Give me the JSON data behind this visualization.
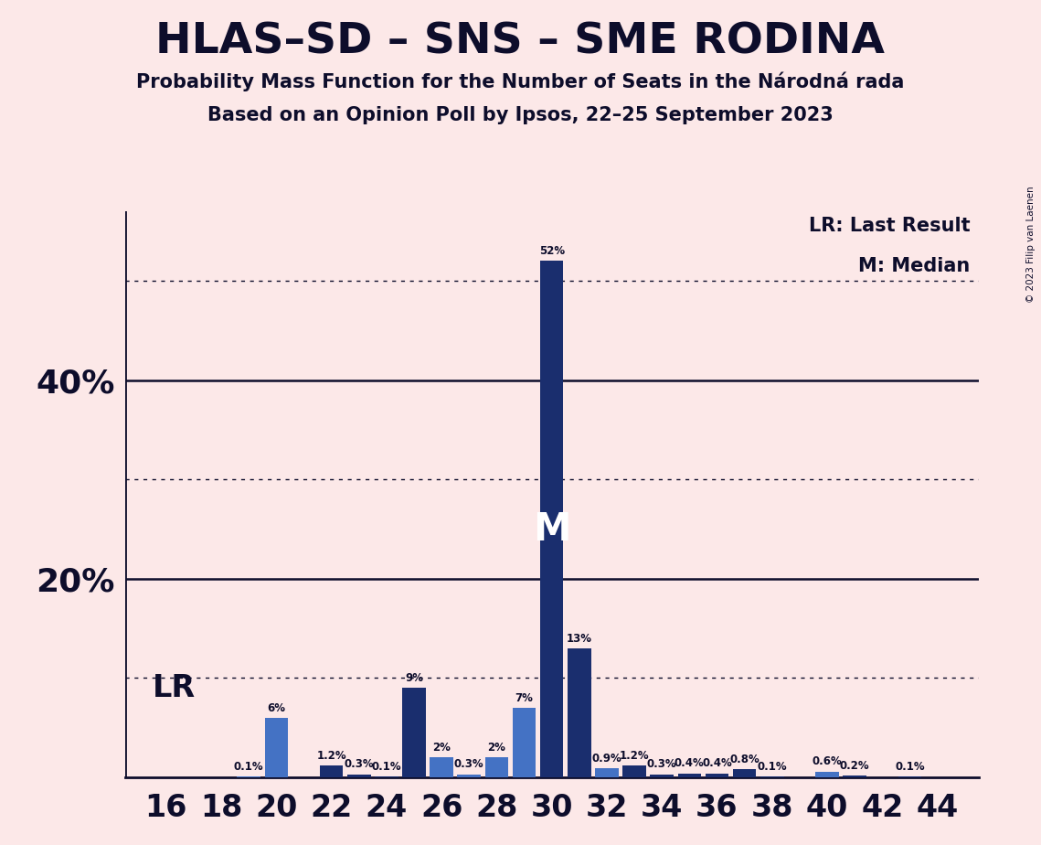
{
  "title": "HLAS–SD – SNS – SME RODINA",
  "subtitle1": "Probability Mass Function for the Number of Seats in the Národná rada",
  "subtitle2": "Based on an Opinion Poll by Ipsos, 22–25 September 2023",
  "copyright": "© 2023 Filip van Laenen",
  "lr_seat": 20,
  "median_seat": 30,
  "seats": [
    16,
    17,
    18,
    19,
    20,
    21,
    22,
    23,
    24,
    25,
    26,
    27,
    28,
    29,
    30,
    31,
    32,
    33,
    34,
    35,
    36,
    37,
    38,
    39,
    40,
    41,
    42,
    43,
    44
  ],
  "probabilities": [
    0.0,
    0.0,
    0.0,
    0.1,
    6.0,
    0.0,
    1.2,
    0.3,
    0.1,
    9.0,
    2.0,
    0.3,
    2.0,
    7.0,
    52.0,
    13.0,
    0.9,
    1.2,
    0.3,
    0.4,
    0.4,
    0.8,
    0.1,
    0.0,
    0.6,
    0.2,
    0.0,
    0.1,
    0.0
  ],
  "bar_color_map": {
    "16": "#4472c4",
    "17": "#4472c4",
    "18": "#4472c4",
    "19": "#4472c4",
    "20": "#4472c4",
    "21": "#4472c4",
    "22": "#1a2e6e",
    "23": "#1a2e6e",
    "24": "#1a2e6e",
    "25": "#1a2e6e",
    "26": "#4472c4",
    "27": "#4472c4",
    "28": "#4472c4",
    "29": "#4472c4",
    "30": "#1a2e6e",
    "31": "#1a2e6e",
    "32": "#4472c4",
    "33": "#1a2e6e",
    "34": "#1a2e6e",
    "35": "#1a2e6e",
    "36": "#1a2e6e",
    "37": "#1a2e6e",
    "38": "#1a2e6e",
    "39": "#1a2e6e",
    "40": "#4472c4",
    "41": "#1a2e6e",
    "42": "#1a2e6e",
    "43": "#1a2e6e",
    "44": "#1a2e6e"
  },
  "background_color": "#fce8e8",
  "axis_line_color": "#0d0d2b",
  "title_color": "#0d0d2b",
  "label_color": "#0d0d2b",
  "dotted_lines": [
    10,
    30,
    50
  ],
  "solid_lines": [
    20,
    40
  ],
  "ylim": [
    0,
    57
  ],
  "xlim": [
    14.5,
    45.5
  ]
}
